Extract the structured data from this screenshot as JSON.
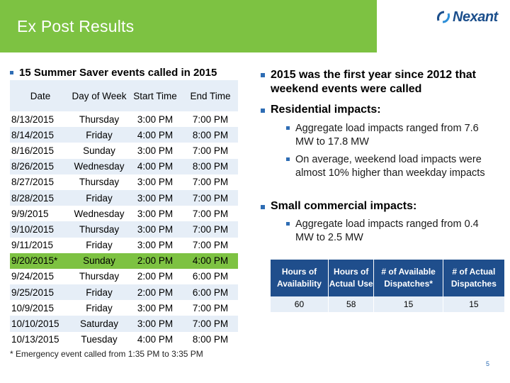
{
  "header": {
    "title": "Ex Post Results",
    "logo_text": "Nexant"
  },
  "left": {
    "heading": "15 Summer Saver events called in 2015",
    "table": {
      "headers": [
        "Date",
        "Day of Week",
        "Start Time",
        "End Time"
      ],
      "rows": [
        [
          "8/13/2015",
          "Thursday",
          "3:00 PM",
          "7:00 PM"
        ],
        [
          "8/14/2015",
          "Friday",
          "4:00 PM",
          "8:00 PM"
        ],
        [
          "8/16/2015",
          "Sunday",
          "3:00 PM",
          "7:00 PM"
        ],
        [
          "8/26/2015",
          "Wednesday",
          "4:00 PM",
          "8:00 PM"
        ],
        [
          "8/27/2015",
          "Thursday",
          "3:00 PM",
          "7:00 PM"
        ],
        [
          "8/28/2015",
          "Friday",
          "3:00 PM",
          "7:00 PM"
        ],
        [
          "9/9/2015",
          "Wednesday",
          "3:00 PM",
          "7:00 PM"
        ],
        [
          "9/10/2015",
          "Thursday",
          "3:00 PM",
          "7:00 PM"
        ],
        [
          "9/11/2015",
          "Friday",
          "3:00 PM",
          "7:00 PM"
        ],
        [
          "9/20/2015*",
          "Sunday",
          "2:00 PM",
          "4:00 PM"
        ],
        [
          "9/24/2015",
          "Thursday",
          "2:00 PM",
          "6:00 PM"
        ],
        [
          "9/25/2015",
          "Friday",
          "2:00 PM",
          "6:00 PM"
        ],
        [
          "10/9/2015",
          "Friday",
          "3:00 PM",
          "7:00 PM"
        ],
        [
          "10/10/2015",
          "Saturday",
          "3:00 PM",
          "7:00 PM"
        ],
        [
          "10/13/2015",
          "Tuesday",
          "4:00 PM",
          "8:00 PM"
        ]
      ]
    },
    "footnote": "* Emergency event called from 1:35 PM to 3:35 PM"
  },
  "right": {
    "bullet1": "2015 was the first year since 2012 that weekend events were called",
    "bullet2": "Residential impacts:",
    "bullet2a": "Aggregate load impacts ranged from 7.6 MW to 17.8 MW",
    "bullet2b": "On average, weekend load impacts were almost 10% higher than weekday impacts",
    "bullet3": "Small commercial impacts:",
    "bullet3a": "Aggregate load impacts ranged from 0.4 MW to 2.5 MW",
    "table": {
      "headers": [
        "Hours of Availability",
        "Hours of Actual Use",
        "# of Available Dispatches*",
        "# of Actual Dispatches"
      ],
      "row": [
        "60",
        "58",
        "15",
        "15"
      ]
    }
  },
  "page_number": "5",
  "colors": {
    "brand_green": "#7dc242",
    "brand_blue": "#1f4e8c",
    "row_tint": "#e6eef7"
  }
}
